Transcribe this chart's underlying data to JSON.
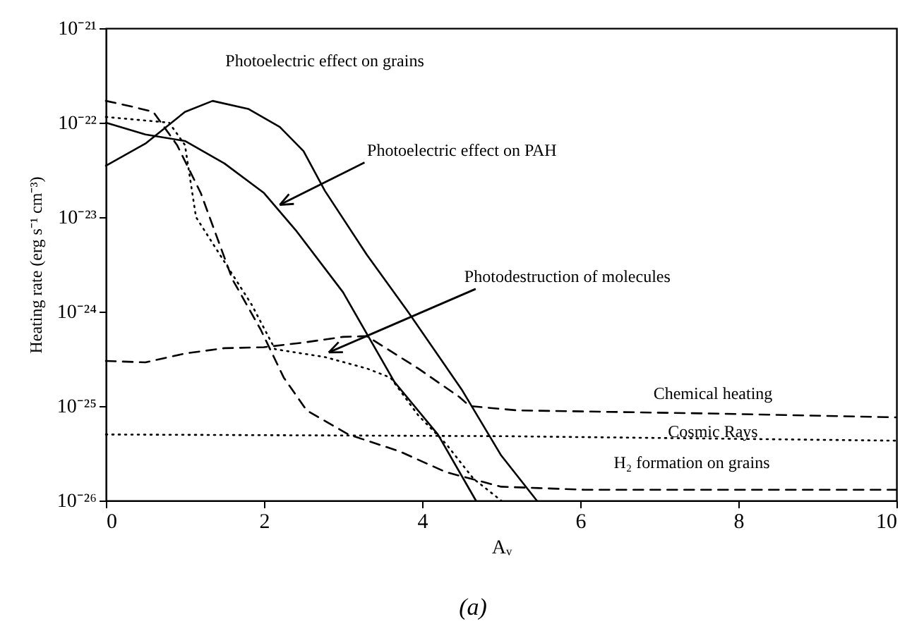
{
  "chart_data": {
    "type": "line",
    "xlabel": "Aᵥ",
    "ylabel": "Heating rate (erg s⁻¹ cm⁻³)",
    "log": "y",
    "xlim": [
      0,
      10
    ],
    "ylim": [
      1e-26,
      1e-21
    ],
    "xticks": [
      0,
      2,
      4,
      6,
      8,
      10
    ],
    "yticks": [
      {
        "value": 1e-26,
        "label": "10⁻²⁶"
      },
      {
        "value": 1e-25,
        "label": "10⁻²⁵"
      },
      {
        "value": 1e-24,
        "label": "10⁻²⁴"
      },
      {
        "value": 1e-23,
        "label": "10⁻²³"
      },
      {
        "value": 1e-22,
        "label": "10⁻²²"
      },
      {
        "value": 1e-21,
        "label": "10⁻²¹"
      }
    ],
    "grid": false,
    "marker": "none",
    "series": [
      {
        "color": "#000000",
        "line_style": "solid",
        "x": [
          0,
          0.5,
          1,
          1.35,
          1.8,
          2.2,
          2.5,
          2.77,
          3.3,
          3.82,
          4.5,
          5,
          5.45
        ],
        "values": [
          3.5e-23,
          6e-23,
          1.3e-22,
          1.7e-22,
          1.4e-22,
          9e-23,
          5e-23,
          1.9e-23,
          4e-24,
          1e-24,
          1.5e-25,
          3e-26,
          1e-26
        ]
      },
      {
        "color": "#000000",
        "line_style": "solid",
        "x": [
          0,
          0.5,
          1,
          1.5,
          2,
          2.4,
          3,
          3.65,
          4.2,
          4.68
        ],
        "values": [
          1e-22,
          7.5e-23,
          6.4e-23,
          3.7e-23,
          1.8e-23,
          7.3e-24,
          1.6e-24,
          1.8e-25,
          5e-26,
          1e-26
        ]
      },
      {
        "color": "#000000",
        "line_style": "dotted",
        "x": [
          0,
          0.8,
          1,
          1.14,
          1.84,
          2.14,
          2.77,
          3.3,
          3.6,
          3.95,
          4.3,
          4.65,
          5.0
        ],
        "values": [
          1.15e-22,
          1e-22,
          5.8e-23,
          1e-23,
          1.2e-24,
          4e-25,
          3.3e-25,
          2.5e-25,
          2e-25,
          8e-26,
          4e-26,
          1.7e-26,
          1e-26
        ]
      },
      {
        "color": "#000000",
        "line_style": "dashed",
        "x": [
          0,
          0.3,
          0.6,
          0.9,
          1.2,
          1.6,
          1.96,
          2.25,
          2.54,
          3.07,
          3.72,
          4.3,
          5.0,
          6.05,
          10
        ],
        "values": [
          1.7e-22,
          1.5e-22,
          1.3e-22,
          5.8e-23,
          1.8e-23,
          2.2e-24,
          6.4e-25,
          2e-25,
          9e-26,
          5e-26,
          3.3e-26,
          2e-26,
          1.4e-26,
          1.3e-26,
          1.3e-26
        ]
      },
      {
        "color": "#000000",
        "line_style": "dashed",
        "x": [
          0,
          0.5,
          1,
          1.5,
          2,
          2.5,
          3,
          3.3,
          3.95,
          4.47,
          4.6,
          5.2,
          7.8,
          10
        ],
        "values": [
          3e-25,
          2.9e-25,
          3.6e-25,
          4.1e-25,
          4.2e-25,
          4.7e-25,
          5.4e-25,
          5.5e-25,
          2.5e-25,
          1.25e-25,
          1e-25,
          9e-26,
          8.3e-26,
          7.6e-26
        ]
      },
      {
        "color": "#000000",
        "line_style": "dotted",
        "x": [
          0,
          5,
          10
        ],
        "values": [
          5e-26,
          4.8e-26,
          4.3e-26
        ]
      }
    ],
    "annotations": [
      "Photoelectric effect on grains",
      {
        "text": "Photoelectric effect on PAH",
        "x": 2.2,
        "y": 1.35e-23
      },
      {
        "text": "Photodestruction of molecules",
        "x": 2.82,
        "y": 3.7e-25
      },
      "Chemical heating",
      "Cosmic Rays",
      "H₂ formation on grains",
      "(a)"
    ]
  }
}
